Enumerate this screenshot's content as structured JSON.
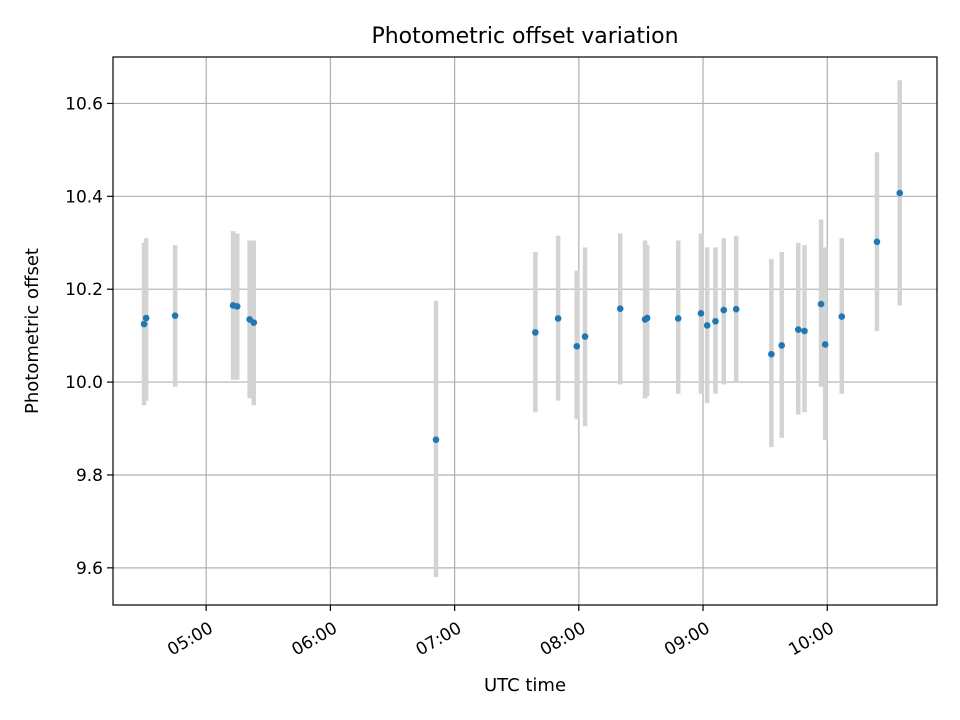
{
  "chart_data": {
    "type": "scatter",
    "title": "Photometric offset variation",
    "xlabel": "UTC time",
    "ylabel": "Photometric offset",
    "xlim": [
      "04:15",
      "10:53"
    ],
    "ylim": [
      9.52,
      10.7
    ],
    "grid": true,
    "x_ticks": [
      "05:00",
      "06:00",
      "07:00",
      "08:00",
      "09:00",
      "10:00"
    ],
    "y_ticks": [
      "9.6",
      "9.8",
      "10.0",
      "10.2",
      "10.4",
      "10.6"
    ],
    "errorbar_color": "#d3d3d3",
    "marker_color": "#1f77b4",
    "points": [
      {
        "x": "04:30",
        "y": 10.125,
        "yerr_low": 9.95,
        "yerr_high": 10.3
      },
      {
        "x": "04:31",
        "y": 10.138,
        "yerr_low": 9.96,
        "yerr_high": 10.31
      },
      {
        "x": "04:45",
        "y": 10.143,
        "yerr_low": 9.99,
        "yerr_high": 10.295
      },
      {
        "x": "05:13",
        "y": 10.165,
        "yerr_low": 10.005,
        "yerr_high": 10.325
      },
      {
        "x": "05:15",
        "y": 10.163,
        "yerr_low": 10.005,
        "yerr_high": 10.32
      },
      {
        "x": "05:21",
        "y": 10.135,
        "yerr_low": 9.965,
        "yerr_high": 10.305
      },
      {
        "x": "05:23",
        "y": 10.128,
        "yerr_low": 9.95,
        "yerr_high": 10.305
      },
      {
        "x": "06:51",
        "y": 9.876,
        "yerr_low": 9.58,
        "yerr_high": 10.175
      },
      {
        "x": "07:39",
        "y": 10.107,
        "yerr_low": 9.935,
        "yerr_high": 10.28
      },
      {
        "x": "07:50",
        "y": 10.137,
        "yerr_low": 9.96,
        "yerr_high": 10.315
      },
      {
        "x": "07:59",
        "y": 10.077,
        "yerr_low": 9.92,
        "yerr_high": 10.24
      },
      {
        "x": "08:03",
        "y": 10.098,
        "yerr_low": 9.905,
        "yerr_high": 10.29
      },
      {
        "x": "08:20",
        "y": 10.158,
        "yerr_low": 9.995,
        "yerr_high": 10.32
      },
      {
        "x": "08:32",
        "y": 10.135,
        "yerr_low": 9.965,
        "yerr_high": 10.305
      },
      {
        "x": "08:33",
        "y": 10.138,
        "yerr_low": 9.97,
        "yerr_high": 10.295
      },
      {
        "x": "08:48",
        "y": 10.137,
        "yerr_low": 9.975,
        "yerr_high": 10.305
      },
      {
        "x": "08:59",
        "y": 10.148,
        "yerr_low": 9.975,
        "yerr_high": 10.32
      },
      {
        "x": "09:02",
        "y": 10.122,
        "yerr_low": 9.955,
        "yerr_high": 10.29
      },
      {
        "x": "09:06",
        "y": 10.131,
        "yerr_low": 9.975,
        "yerr_high": 10.29
      },
      {
        "x": "09:10",
        "y": 10.155,
        "yerr_low": 9.995,
        "yerr_high": 10.31
      },
      {
        "x": "09:16",
        "y": 10.157,
        "yerr_low": 10.0,
        "yerr_high": 10.315
      },
      {
        "x": "09:33",
        "y": 10.06,
        "yerr_low": 9.86,
        "yerr_high": 10.265
      },
      {
        "x": "09:38",
        "y": 10.079,
        "yerr_low": 9.88,
        "yerr_high": 10.28
      },
      {
        "x": "09:46",
        "y": 10.113,
        "yerr_low": 9.93,
        "yerr_high": 10.3
      },
      {
        "x": "09:49",
        "y": 10.11,
        "yerr_low": 9.935,
        "yerr_high": 10.295
      },
      {
        "x": "09:57",
        "y": 10.168,
        "yerr_low": 9.99,
        "yerr_high": 10.35
      },
      {
        "x": "09:59",
        "y": 10.081,
        "yerr_low": 9.875,
        "yerr_high": 10.29
      },
      {
        "x": "10:07",
        "y": 10.141,
        "yerr_low": 9.975,
        "yerr_high": 10.31
      },
      {
        "x": "10:24",
        "y": 10.302,
        "yerr_low": 10.11,
        "yerr_high": 10.495
      },
      {
        "x": "10:35",
        "y": 10.407,
        "yerr_low": 10.165,
        "yerr_high": 10.65
      }
    ]
  }
}
